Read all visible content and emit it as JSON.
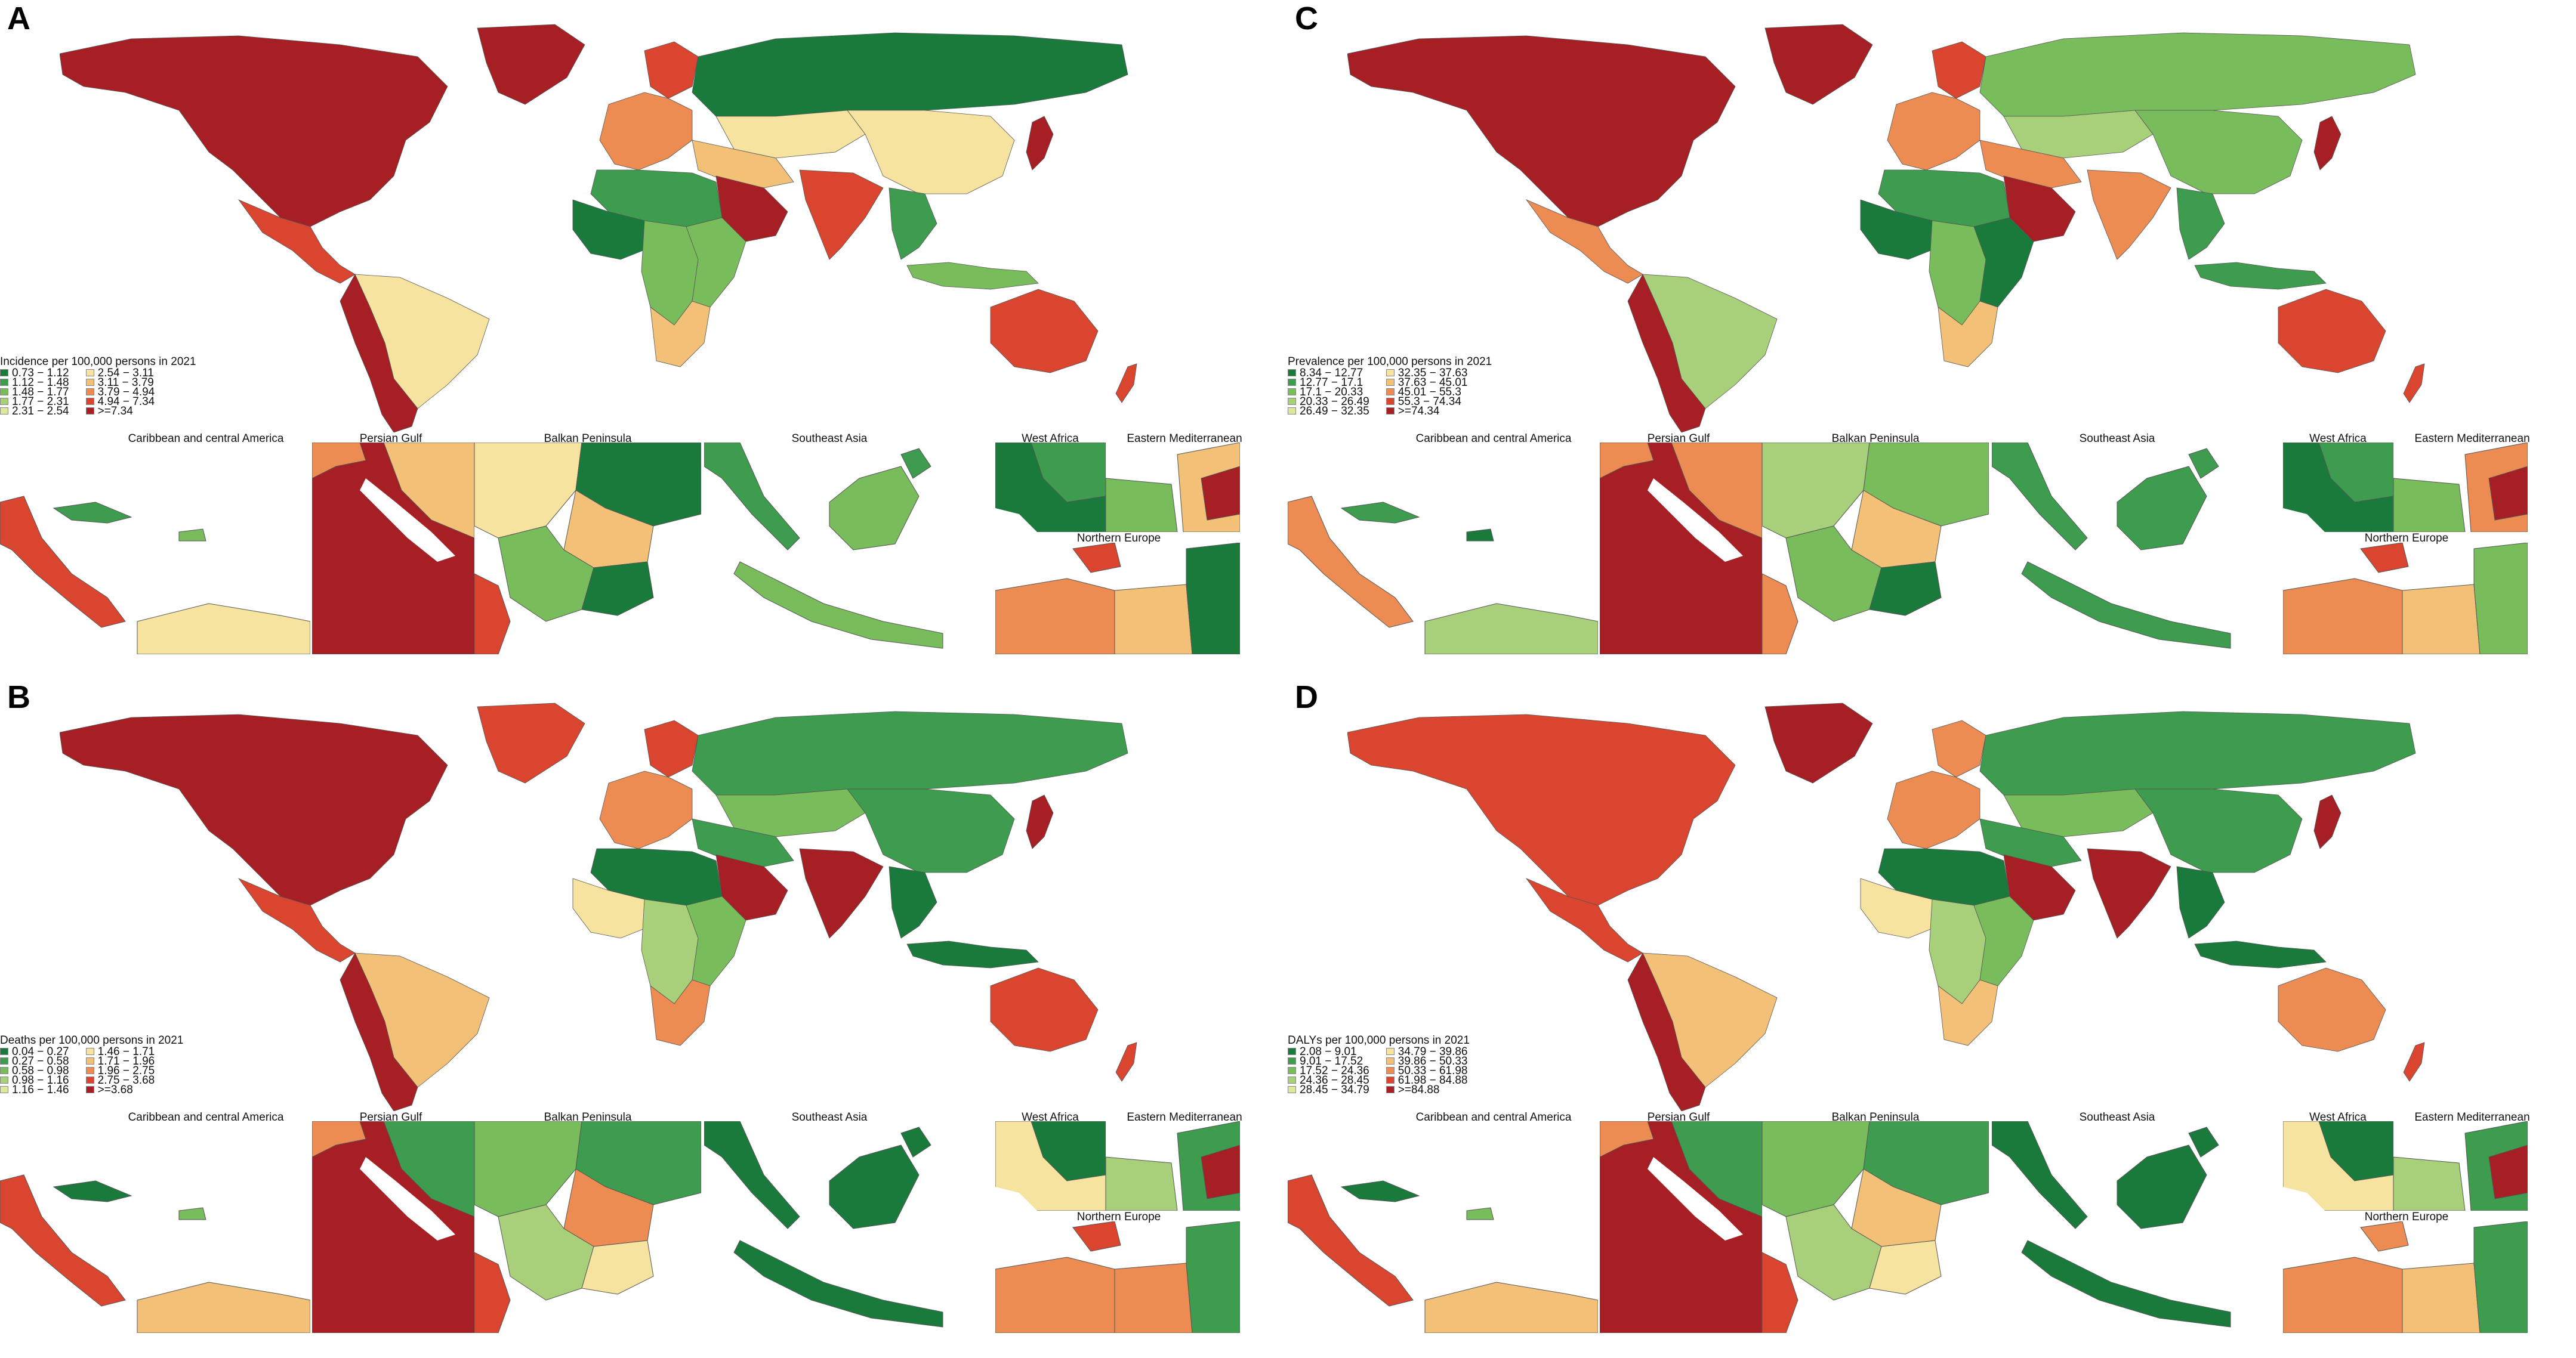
{
  "colors": {
    "g1": "#1a7a3c",
    "g2": "#3d9c4d",
    "g3": "#78bc5c",
    "g4": "#a8d07a",
    "g5": "#dfe79c",
    "o1": "#f6e3a0",
    "o2": "#f3c078",
    "o3": "#ec8b52",
    "o4": "#d9452f",
    "o5": "#a51f24",
    "ocean": "#ffffff",
    "border": "#555555"
  },
  "inset_labels": {
    "caribbean": "Caribbean and central America",
    "persian_gulf": "Persian Gulf",
    "balkan": "Balkan Peninsula",
    "southeast_asia": "Southeast Asia",
    "west_africa": "West Africa",
    "eastern_med": "Eastern Mediterranean",
    "northern_europe": "Northern Europe"
  },
  "panels": [
    {
      "letter": "A",
      "legend_title": "Incidence per 100,000 persons in 2021",
      "legend_left": [
        "0.73 − 1.12",
        "1.12 − 1.48",
        "1.48 − 1.77",
        "1.77 − 2.31",
        "2.31 − 2.54"
      ],
      "legend_right": [
        "2.54 − 3.11",
        "3.11 − 3.79",
        "3.79 − 4.94",
        "4.94 − 7.34",
        ">=7.34"
      ],
      "regions": {
        "namerica": "o5",
        "greenland": "o5",
        "samerica": "o1",
        "samerica_w": "o5",
        "europe": "o3",
        "scandinavia": "o4",
        "russia": "g1",
        "central_asia": "o1",
        "mideast": "o2",
        "arabia": "o5",
        "india": "o4",
        "china": "o1",
        "se_asia": "g2",
        "nafrica": "g2",
        "westafrica": "g1",
        "centralafrica": "g3",
        "eastafrica": "g3",
        "safrica": "o2",
        "australia": "o4",
        "indonesia": "g3",
        "japan": "o5",
        "nz": "o4",
        "mexico": "o4"
      }
    },
    {
      "letter": "B",
      "legend_title": "Deaths per 100,000 persons in 2021",
      "legend_left": [
        "0.04 − 0.27",
        "0.27 − 0.58",
        "0.58 − 0.98",
        "0.98 − 1.16",
        "1.16 − 1.46"
      ],
      "legend_right": [
        "1.46 − 1.71",
        "1.71 − 1.96",
        "1.96 − 2.75",
        "2.75 − 3.68",
        ">=3.68"
      ],
      "regions": {
        "namerica": "o5",
        "greenland": "o4",
        "samerica": "o2",
        "samerica_w": "o5",
        "europe": "o3",
        "scandinavia": "o4",
        "russia": "g2",
        "central_asia": "g3",
        "mideast": "g2",
        "arabia": "o5",
        "india": "o5",
        "china": "g2",
        "se_asia": "g1",
        "nafrica": "g1",
        "westafrica": "o1",
        "centralafrica": "g4",
        "eastafrica": "g3",
        "safrica": "o3",
        "australia": "o4",
        "indonesia": "g1",
        "japan": "o5",
        "nz": "o4",
        "mexico": "o4"
      }
    },
    {
      "letter": "C",
      "legend_title": "Prevalence per 100,000 persons in 2021",
      "legend_left": [
        "8.34 − 12.77",
        "12.77 − 17.1",
        "17.1 − 20.33",
        "20.33 − 26.49",
        "26.49 − 32.35"
      ],
      "legend_right": [
        "32.35 − 37.63",
        "37.63 − 45.01",
        "45.01 − 55.3",
        "55.3 − 74.34",
        ">=74.34"
      ],
      "regions": {
        "namerica": "o5",
        "greenland": "o5",
        "samerica": "g4",
        "samerica_w": "o5",
        "europe": "o3",
        "scandinavia": "o4",
        "russia": "g3",
        "central_asia": "g4",
        "mideast": "o3",
        "arabia": "o5",
        "india": "o3",
        "china": "g3",
        "se_asia": "g2",
        "nafrica": "g2",
        "westafrica": "g1",
        "centralafrica": "g3",
        "eastafrica": "g1",
        "safrica": "o2",
        "australia": "o4",
        "indonesia": "g2",
        "japan": "o5",
        "nz": "o4",
        "mexico": "o3"
      }
    },
    {
      "letter": "D",
      "legend_title": "DALYs per 100,000 persons in 2021",
      "legend_left": [
        "2.08 − 9.01",
        "9.01 − 17.52",
        "17.52 − 24.36",
        "24.36 − 28.45",
        "28.45 − 34.79"
      ],
      "legend_right": [
        "34.79 − 39.86",
        "39.86 − 50.33",
        "50.33 − 61.98",
        "61.98 − 84.88",
        ">=84.88"
      ],
      "regions": {
        "namerica": "o4",
        "greenland": "o5",
        "samerica": "o2",
        "samerica_w": "o5",
        "europe": "o3",
        "scandinavia": "o3",
        "russia": "g2",
        "central_asia": "g3",
        "mideast": "g2",
        "arabia": "o5",
        "india": "o5",
        "china": "g2",
        "se_asia": "g1",
        "nafrica": "g1",
        "westafrica": "o1",
        "centralafrica": "g4",
        "eastafrica": "g3",
        "safrica": "o2",
        "australia": "o3",
        "indonesia": "g1",
        "japan": "o5",
        "nz": "o4",
        "mexico": "o4"
      }
    }
  ]
}
